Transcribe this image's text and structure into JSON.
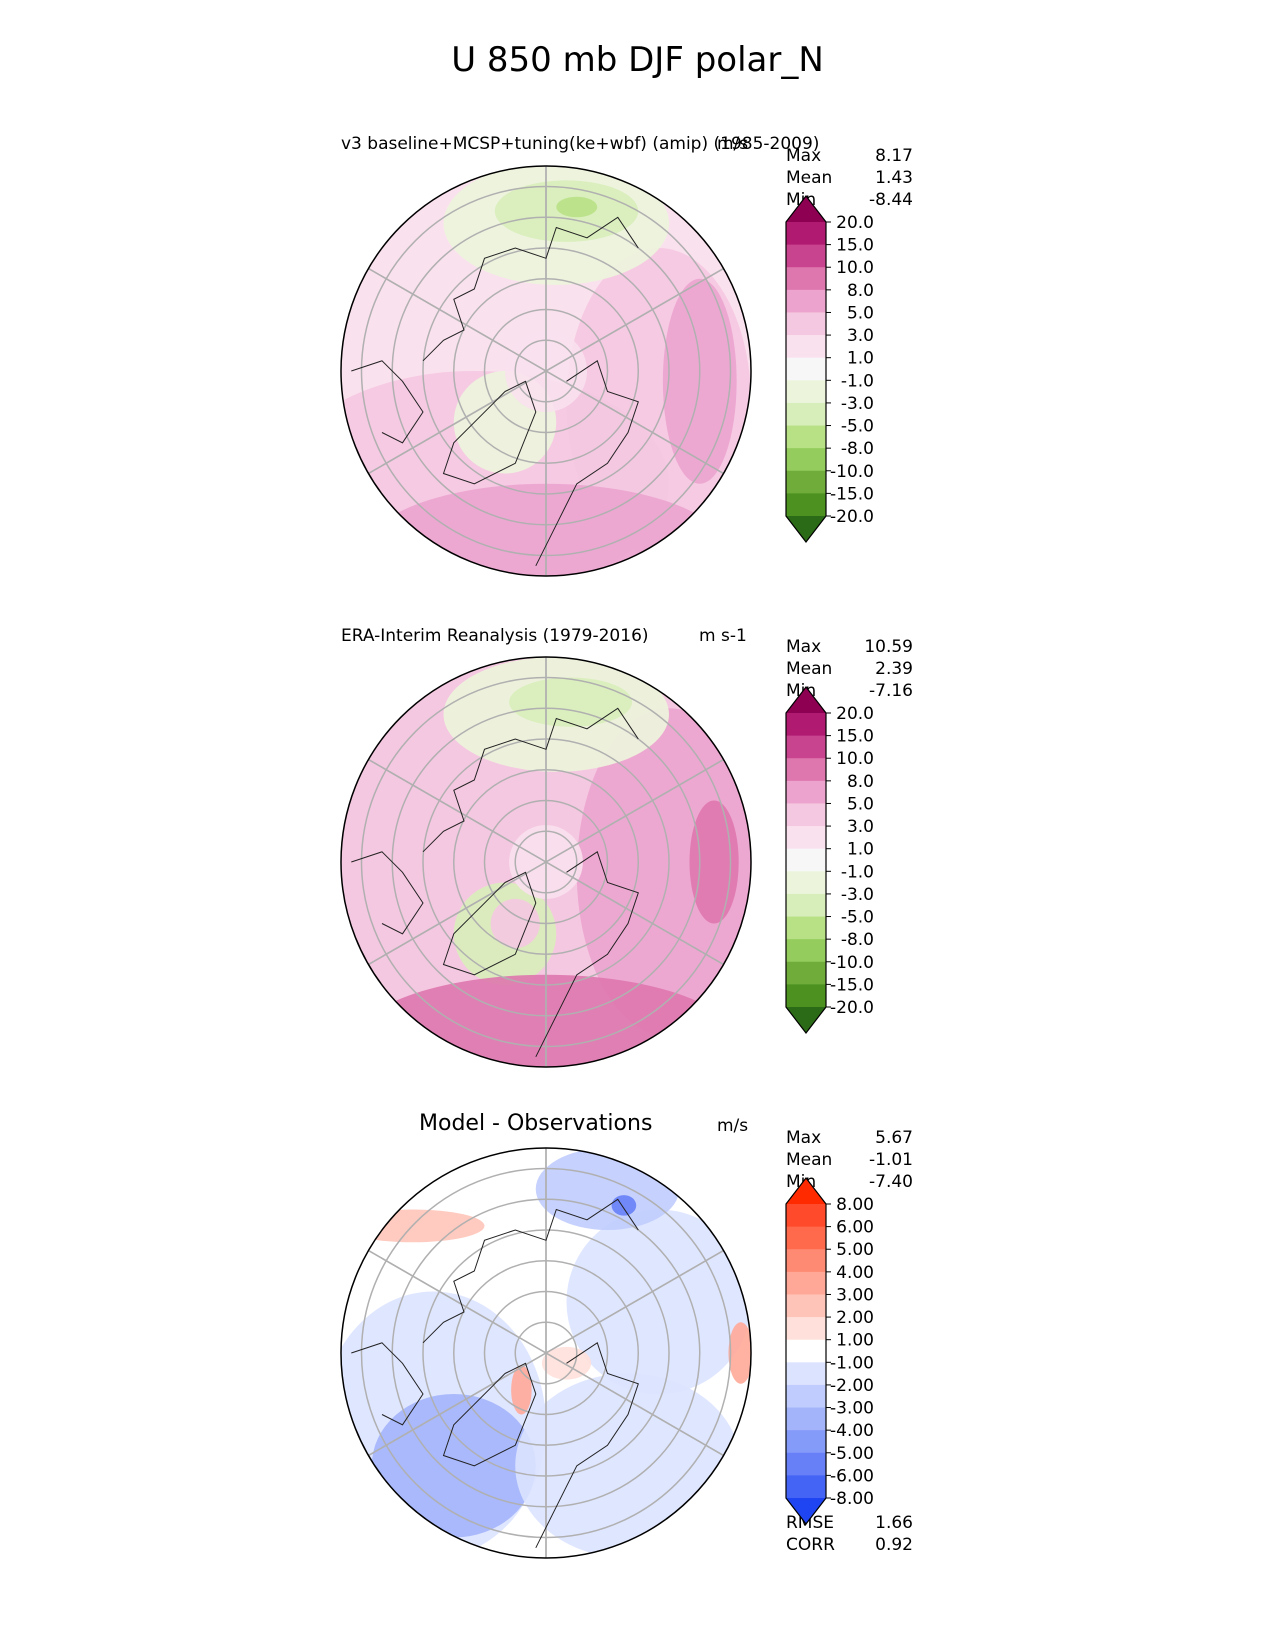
{
  "title": "U 850 mb DJF polar_N",
  "panels": [
    {
      "title": "v3 baseline+MCSP+tuning(ke+wbf) (amip) (1985-2009)",
      "units": "m/s",
      "stats": [
        {
          "label": "Max",
          "value": "8.17"
        },
        {
          "label": "Mean",
          "value": "1.43"
        },
        {
          "label": "Min",
          "value": "-8.44"
        }
      ]
    },
    {
      "title": "ERA-Interim Reanalysis (1979-2016)",
      "units": "m s-1",
      "stats": [
        {
          "label": "Max",
          "value": "10.59"
        },
        {
          "label": "Mean",
          "value": "2.39"
        },
        {
          "label": "Min",
          "value": "-7.16"
        }
      ]
    },
    {
      "title": "Model - Observations",
      "units": "m/s",
      "stats": [
        {
          "label": "Max",
          "value": "5.67"
        },
        {
          "label": "Mean",
          "value": "-1.01"
        },
        {
          "label": "Min",
          "value": "-7.40"
        }
      ],
      "extra_stats": [
        {
          "label": "RMSE",
          "value": "1.66"
        },
        {
          "label": "CORR",
          "value": "0.92"
        }
      ]
    }
  ],
  "chart_data": [
    {
      "type": "heatmap",
      "projection": "north polar stereographic",
      "panel": "v3 baseline+MCSP+tuning(ke+wbf) (amip) (1985-2009)",
      "colorbar": {
        "ticks": [
          "20.0",
          "15.0",
          "10.0",
          "8.0",
          "5.0",
          "3.0",
          "1.0",
          "-1.0",
          "-3.0",
          "-5.0",
          "-8.0",
          "-10.0",
          "-15.0",
          "-20.0"
        ],
        "colors": [
          "#8e0152",
          "#b01a70",
          "#c9448f",
          "#de77ae",
          "#eca4cf",
          "#f5c8e1",
          "#fae1ee",
          "#f7f7f7",
          "#ecf5dc",
          "#d8eeba",
          "#b8e186",
          "#94cc5d",
          "#6fac3a",
          "#4d9221",
          "#2b6b17"
        ]
      },
      "stats": {
        "max": 8.17,
        "mean": 1.43,
        "min": -8.44
      }
    },
    {
      "type": "heatmap",
      "projection": "north polar stereographic",
      "panel": "ERA-Interim Reanalysis (1979-2016)",
      "colorbar": {
        "ticks": [
          "20.0",
          "15.0",
          "10.0",
          "8.0",
          "5.0",
          "3.0",
          "1.0",
          "-1.0",
          "-3.0",
          "-5.0",
          "-8.0",
          "-10.0",
          "-15.0",
          "-20.0"
        ],
        "colors": [
          "#8e0152",
          "#b01a70",
          "#c9448f",
          "#de77ae",
          "#eca4cf",
          "#f5c8e1",
          "#fae1ee",
          "#f7f7f7",
          "#ecf5dc",
          "#d8eeba",
          "#b8e186",
          "#94cc5d",
          "#6fac3a",
          "#4d9221",
          "#2b6b17"
        ]
      },
      "stats": {
        "max": 10.59,
        "mean": 2.39,
        "min": -7.16
      }
    },
    {
      "type": "heatmap",
      "projection": "north polar stereographic",
      "panel": "Model - Observations",
      "colorbar": {
        "ticks": [
          "8.00",
          "6.00",
          "5.00",
          "4.00",
          "3.00",
          "2.00",
          "1.00",
          "-1.00",
          "-2.00",
          "-3.00",
          "-4.00",
          "-5.00",
          "-6.00",
          "-8.00"
        ],
        "colors": [
          "#ff2a00",
          "#ff4b2b",
          "#ff6a4d",
          "#ff8a73",
          "#ffa898",
          "#ffc4b8",
          "#ffe0da",
          "#ffffff",
          "#dce3ff",
          "#c0ccfd",
          "#a3b4fb",
          "#859bf9",
          "#6780f7",
          "#4464f5",
          "#1f45f2"
        ]
      },
      "stats": {
        "max": 5.67,
        "mean": -1.01,
        "min": -7.4,
        "rmse": 1.66,
        "corr": 0.92
      }
    }
  ]
}
